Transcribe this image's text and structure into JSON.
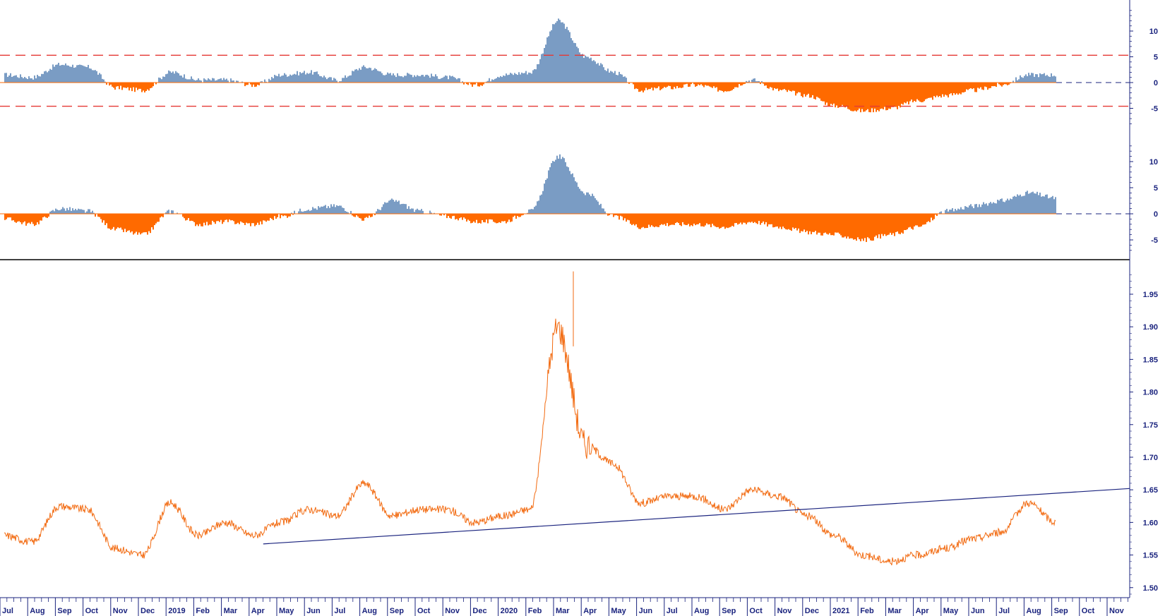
{
  "colors": {
    "positive": "#7a9cc4",
    "negative": "#ff6a00",
    "price": "#f26a10",
    "trend": "#1a237e",
    "threshold": "#e53935",
    "axis": "#1a237e",
    "frame": "#000000"
  },
  "chart_data": [
    {
      "type": "area",
      "panel": "oscillator-top",
      "title": "",
      "ylim": [
        -8,
        14
      ],
      "yticks": [
        10,
        5,
        0,
        -5
      ],
      "tick_labels": [
        "10",
        "5",
        "0",
        "-5"
      ],
      "thresholds": [
        5.3,
        -4.6
      ],
      "x": [
        "2018-07",
        "2018-08",
        "2018-09",
        "2018-10",
        "2018-11",
        "2018-12",
        "2019-01",
        "2019-02",
        "2019-03",
        "2019-04",
        "2019-05",
        "2019-06",
        "2019-07",
        "2019-08",
        "2019-09",
        "2019-10",
        "2019-11",
        "2019-12",
        "2020-01",
        "2020-02",
        "2020-03",
        "2020-04",
        "2020-05",
        "2020-06",
        "2020-07",
        "2020-08",
        "2020-09",
        "2020-10",
        "2020-11",
        "2020-12",
        "2021-01",
        "2021-02",
        "2021-03",
        "2021-04",
        "2021-05",
        "2021-06",
        "2021-07",
        "2021-08",
        "2021-09"
      ],
      "values": [
        1.5,
        1.0,
        3.5,
        3.0,
        -1.0,
        -1.5,
        2.0,
        0.5,
        0.5,
        -0.5,
        1.5,
        2.0,
        0.5,
        3.0,
        1.5,
        1.5,
        1.0,
        -0.5,
        1.5,
        2.0,
        12.0,
        5.0,
        2.0,
        -1.5,
        -1.0,
        -0.5,
        -1.5,
        0.5,
        -1.5,
        -2.5,
        -4.5,
        -5.5,
        -5.0,
        -3.5,
        -2.5,
        -1.5,
        -0.5,
        1.5,
        1.5
      ]
    },
    {
      "type": "area",
      "panel": "oscillator-middle",
      "title": "",
      "ylim": [
        -7,
        13
      ],
      "yticks": [
        10,
        5,
        0,
        -5
      ],
      "tick_labels": [
        "10",
        "5",
        "0",
        "-5"
      ],
      "x": [
        "2018-07",
        "2018-08",
        "2018-09",
        "2018-10",
        "2018-11",
        "2018-12",
        "2019-01",
        "2019-02",
        "2019-03",
        "2019-04",
        "2019-05",
        "2019-06",
        "2019-07",
        "2019-08",
        "2019-09",
        "2019-10",
        "2019-11",
        "2019-12",
        "2020-01",
        "2020-02",
        "2020-03",
        "2020-04",
        "2020-05",
        "2020-06",
        "2020-07",
        "2020-08",
        "2020-09",
        "2020-10",
        "2020-11",
        "2020-12",
        "2021-01",
        "2021-02",
        "2021-03",
        "2021-04",
        "2021-05",
        "2021-06",
        "2021-07",
        "2021-08",
        "2021-09"
      ],
      "values": [
        -1.0,
        -2.0,
        1.0,
        0.5,
        -3.0,
        -4.0,
        0.5,
        -2.0,
        -1.5,
        -2.0,
        -0.5,
        1.0,
        1.5,
        -1.0,
        2.5,
        0.5,
        -0.5,
        -1.5,
        -1.5,
        0.5,
        11.0,
        4.0,
        -0.5,
        -2.5,
        -2.0,
        -2.0,
        -2.5,
        -1.5,
        -2.5,
        -3.5,
        -4.0,
        -5.0,
        -4.0,
        -2.5,
        0.5,
        1.5,
        2.5,
        4.0,
        3.0
      ]
    },
    {
      "type": "line",
      "panel": "price",
      "title": "",
      "ylim": [
        1.49,
        1.99
      ],
      "yticks": [
        1.95,
        1.9,
        1.85,
        1.8,
        1.75,
        1.7,
        1.65,
        1.6,
        1.55,
        1.5
      ],
      "tick_labels": [
        "1.95",
        "1.90",
        "1.85",
        "1.80",
        "1.75",
        "1.70",
        "1.65",
        "1.60",
        "1.55",
        "1.50"
      ],
      "x": [
        "2018-07",
        "2018-08",
        "2018-09",
        "2018-10",
        "2018-11",
        "2018-12",
        "2019-01",
        "2019-02",
        "2019-03",
        "2019-04",
        "2019-05",
        "2019-06",
        "2019-07",
        "2019-08",
        "2019-09",
        "2019-10",
        "2019-11",
        "2019-12",
        "2020-01",
        "2020-02",
        "2020-03",
        "2020-04",
        "2020-05",
        "2020-06",
        "2020-07",
        "2020-08",
        "2020-09",
        "2020-10",
        "2020-11",
        "2020-12",
        "2021-01",
        "2021-02",
        "2021-03",
        "2021-04",
        "2021-05",
        "2021-06",
        "2021-07",
        "2021-08",
        "2021-09"
      ],
      "values": [
        1.58,
        1.57,
        1.625,
        1.62,
        1.56,
        1.55,
        1.63,
        1.58,
        1.6,
        1.58,
        1.6,
        1.62,
        1.61,
        1.66,
        1.61,
        1.62,
        1.62,
        1.6,
        1.61,
        1.62,
        1.9,
        1.72,
        1.69,
        1.63,
        1.64,
        1.64,
        1.62,
        1.65,
        1.64,
        1.61,
        1.58,
        1.55,
        1.54,
        1.55,
        1.56,
        1.575,
        1.585,
        1.63,
        1.6
      ],
      "trendline": {
        "from": [
          "2019-04",
          1.567
        ],
        "to": [
          "2021-11",
          1.652
        ]
      }
    }
  ],
  "x_axis": {
    "months": [
      {
        "label": "Jul",
        "date": "2018-07"
      },
      {
        "label": "Aug",
        "date": "2018-08"
      },
      {
        "label": "Sep",
        "date": "2018-09"
      },
      {
        "label": "Oct",
        "date": "2018-10"
      },
      {
        "label": "Nov",
        "date": "2018-11"
      },
      {
        "label": "Dec",
        "date": "2018-12"
      },
      {
        "label": "2019",
        "date": "2019-01"
      },
      {
        "label": "Feb",
        "date": "2019-02"
      },
      {
        "label": "Mar",
        "date": "2019-03"
      },
      {
        "label": "Apr",
        "date": "2019-04"
      },
      {
        "label": "May",
        "date": "2019-05"
      },
      {
        "label": "Jun",
        "date": "2019-06"
      },
      {
        "label": "Jul",
        "date": "2019-07"
      },
      {
        "label": "Aug",
        "date": "2019-08"
      },
      {
        "label": "Sep",
        "date": "2019-09"
      },
      {
        "label": "Oct",
        "date": "2019-10"
      },
      {
        "label": "Nov",
        "date": "2019-11"
      },
      {
        "label": "Dec",
        "date": "2019-12"
      },
      {
        "label": "2020",
        "date": "2020-01"
      },
      {
        "label": "Feb",
        "date": "2020-02"
      },
      {
        "label": "Mar",
        "date": "2020-03"
      },
      {
        "label": "Apr",
        "date": "2020-04"
      },
      {
        "label": "May",
        "date": "2020-05"
      },
      {
        "label": "Jun",
        "date": "2020-06"
      },
      {
        "label": "Jul",
        "date": "2020-07"
      },
      {
        "label": "Aug",
        "date": "2020-08"
      },
      {
        "label": "Sep",
        "date": "2020-09"
      },
      {
        "label": "Oct",
        "date": "2020-10"
      },
      {
        "label": "Nov",
        "date": "2020-11"
      },
      {
        "label": "Dec",
        "date": "2020-12"
      },
      {
        "label": "2021",
        "date": "2021-01"
      },
      {
        "label": "Feb",
        "date": "2021-02"
      },
      {
        "label": "Mar",
        "date": "2021-03"
      },
      {
        "label": "Apr",
        "date": "2021-04"
      },
      {
        "label": "May",
        "date": "2021-05"
      },
      {
        "label": "Jun",
        "date": "2021-06"
      },
      {
        "label": "Jul",
        "date": "2021-07"
      },
      {
        "label": "Aug",
        "date": "2021-08"
      },
      {
        "label": "Sep",
        "date": "2021-09"
      },
      {
        "label": "Oct",
        "date": "2021-10"
      },
      {
        "label": "Nov",
        "date": "2021-11"
      }
    ]
  }
}
